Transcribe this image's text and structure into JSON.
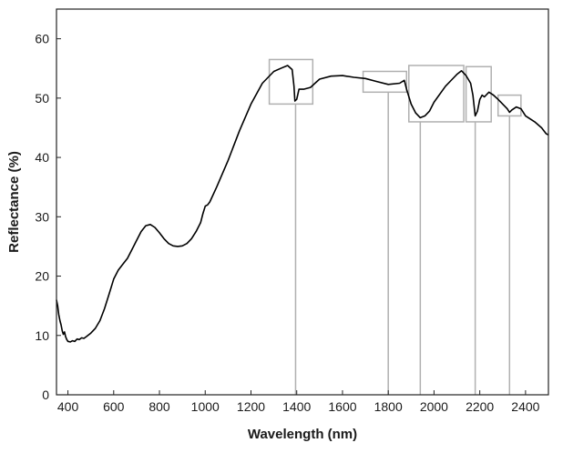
{
  "chart_data": {
    "type": "line",
    "title": "",
    "xlabel": "Wavelength (nm)",
    "ylabel": "Reflectance (%)",
    "xlim": [
      350,
      2500
    ],
    "ylim": [
      0,
      65
    ],
    "xticks": [
      400,
      600,
      800,
      1000,
      1200,
      1400,
      1600,
      1800,
      2000,
      2200,
      2400
    ],
    "yticks": [
      0,
      10,
      20,
      30,
      40,
      50,
      60
    ],
    "grid": false,
    "legend": "none",
    "series": [
      {
        "color": "#000000",
        "points": [
          [
            350,
            16.0
          ],
          [
            355,
            15.0
          ],
          [
            360,
            13.5
          ],
          [
            365,
            12.5
          ],
          [
            370,
            11.8
          ],
          [
            375,
            10.8
          ],
          [
            380,
            10.2
          ],
          [
            385,
            10.6
          ],
          [
            390,
            9.8
          ],
          [
            395,
            9.3
          ],
          [
            400,
            9.0
          ],
          [
            410,
            8.9
          ],
          [
            420,
            9.1
          ],
          [
            430,
            9.0
          ],
          [
            440,
            9.4
          ],
          [
            450,
            9.3
          ],
          [
            460,
            9.6
          ],
          [
            470,
            9.5
          ],
          [
            480,
            9.8
          ],
          [
            500,
            10.4
          ],
          [
            520,
            11.2
          ],
          [
            540,
            12.5
          ],
          [
            560,
            14.5
          ],
          [
            580,
            17.0
          ],
          [
            600,
            19.5
          ],
          [
            620,
            21.0
          ],
          [
            640,
            22.0
          ],
          [
            660,
            23.0
          ],
          [
            680,
            24.5
          ],
          [
            700,
            26.0
          ],
          [
            720,
            27.5
          ],
          [
            740,
            28.5
          ],
          [
            760,
            28.7
          ],
          [
            780,
            28.2
          ],
          [
            800,
            27.3
          ],
          [
            820,
            26.3
          ],
          [
            840,
            25.5
          ],
          [
            860,
            25.1
          ],
          [
            880,
            25.0
          ],
          [
            900,
            25.1
          ],
          [
            920,
            25.5
          ],
          [
            940,
            26.3
          ],
          [
            960,
            27.5
          ],
          [
            980,
            29.0
          ],
          [
            990,
            30.5
          ],
          [
            1000,
            31.8
          ],
          [
            1010,
            32.0
          ],
          [
            1020,
            32.5
          ],
          [
            1050,
            35.0
          ],
          [
            1100,
            39.5
          ],
          [
            1150,
            44.5
          ],
          [
            1200,
            49.0
          ],
          [
            1250,
            52.5
          ],
          [
            1300,
            54.5
          ],
          [
            1330,
            55.0
          ],
          [
            1360,
            55.5
          ],
          [
            1380,
            54.8
          ],
          [
            1388,
            52.0
          ],
          [
            1392,
            49.5
          ],
          [
            1400,
            49.8
          ],
          [
            1410,
            51.5
          ],
          [
            1430,
            51.5
          ],
          [
            1460,
            51.8
          ],
          [
            1480,
            52.5
          ],
          [
            1500,
            53.2
          ],
          [
            1550,
            53.7
          ],
          [
            1600,
            53.8
          ],
          [
            1650,
            53.5
          ],
          [
            1700,
            53.3
          ],
          [
            1750,
            52.8
          ],
          [
            1800,
            52.3
          ],
          [
            1850,
            52.5
          ],
          [
            1870,
            53.0
          ],
          [
            1880,
            51.5
          ],
          [
            1900,
            49.0
          ],
          [
            1920,
            47.5
          ],
          [
            1940,
            46.7
          ],
          [
            1960,
            47.0
          ],
          [
            1980,
            47.8
          ],
          [
            2000,
            49.3
          ],
          [
            2050,
            52.0
          ],
          [
            2080,
            53.2
          ],
          [
            2100,
            54.0
          ],
          [
            2120,
            54.6
          ],
          [
            2140,
            53.8
          ],
          [
            2160,
            52.5
          ],
          [
            2170,
            50.5
          ],
          [
            2180,
            47.0
          ],
          [
            2190,
            47.8
          ],
          [
            2200,
            49.8
          ],
          [
            2210,
            50.5
          ],
          [
            2220,
            50.2
          ],
          [
            2240,
            51.0
          ],
          [
            2260,
            50.5
          ],
          [
            2280,
            49.8
          ],
          [
            2300,
            49.0
          ],
          [
            2320,
            48.2
          ],
          [
            2330,
            47.6
          ],
          [
            2340,
            48.0
          ],
          [
            2360,
            48.5
          ],
          [
            2380,
            48.2
          ],
          [
            2400,
            47.0
          ],
          [
            2440,
            46.0
          ],
          [
            2470,
            45.0
          ],
          [
            2490,
            44.0
          ],
          [
            2500,
            43.8
          ]
        ]
      }
    ],
    "annotation_boxes": [
      {
        "x_range": [
          1280,
          1470
        ],
        "y_range": [
          49.0,
          56.5
        ]
      },
      {
        "x_range": [
          1690,
          1880
        ],
        "y_range": [
          51.0,
          54.5
        ]
      },
      {
        "x_range": [
          1890,
          2130
        ],
        "y_range": [
          46.0,
          55.5
        ]
      },
      {
        "x_range": [
          2140,
          2250
        ],
        "y_range": [
          46.0,
          55.3
        ]
      },
      {
        "x_range": [
          2280,
          2380
        ],
        "y_range": [
          47.0,
          50.5
        ]
      }
    ],
    "annotation_lines": [
      1395,
      1800,
      1940,
      2180,
      2330
    ]
  }
}
